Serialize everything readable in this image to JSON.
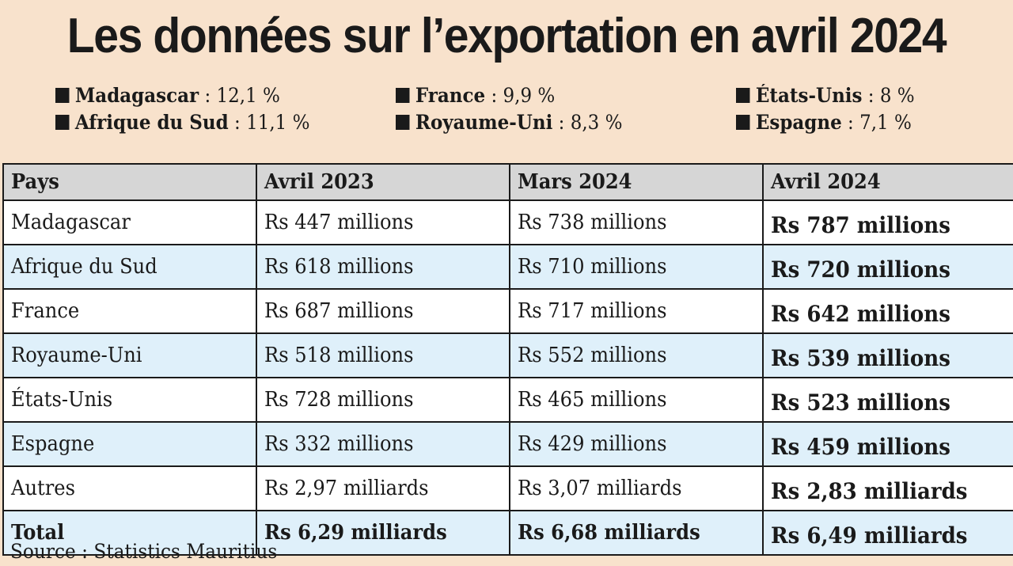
{
  "title": "Les données sur l’exportation en avril 2024",
  "legend": [
    {
      "name": "Madagascar",
      "value": " : 12,1 %"
    },
    {
      "name": "France",
      "value": " : 9,9 %"
    },
    {
      "name": "États-Unis",
      "value": " : 8 %"
    },
    {
      "name": "Afrique du Sud",
      "value": " : 11,1 %"
    },
    {
      "name": "Royaume-Uni",
      "value": " : 8,3 %"
    },
    {
      "name": "Espagne",
      "value": " : 7,1 %"
    }
  ],
  "table": {
    "headers": [
      "Pays",
      "Avril 2023",
      "Mars 2024",
      "Avril 2024"
    ],
    "rows": [
      [
        "Madagascar",
        "Rs 447 millions",
        "Rs 738 millions",
        "Rs 787 millions"
      ],
      [
        "Afrique du Sud",
        "Rs 618 millions",
        "Rs 710 millions",
        "Rs 720 millions"
      ],
      [
        "France",
        "Rs 687 millions",
        "Rs 717 millions",
        "Rs 642 millions"
      ],
      [
        "Royaume-Uni",
        "Rs 518 millions",
        "Rs 552 millions",
        "Rs 539 millions"
      ],
      [
        "États-Unis",
        "Rs 728 millions",
        "Rs 465 millions",
        "Rs 523 millions"
      ],
      [
        "Espagne",
        "Rs 332 millions",
        "Rs 429 millions",
        "Rs 459 millions"
      ],
      [
        "Autres",
        "Rs 2,97 milliards",
        "Rs 3,07 milliards",
        "Rs 2,83 milliards"
      ],
      [
        "Total",
        "Rs 6,29 milliards",
        "Rs 6,68 milliards",
        "Rs 6,49 milliards"
      ]
    ]
  },
  "source": "Source : Statistics Mauritius"
}
